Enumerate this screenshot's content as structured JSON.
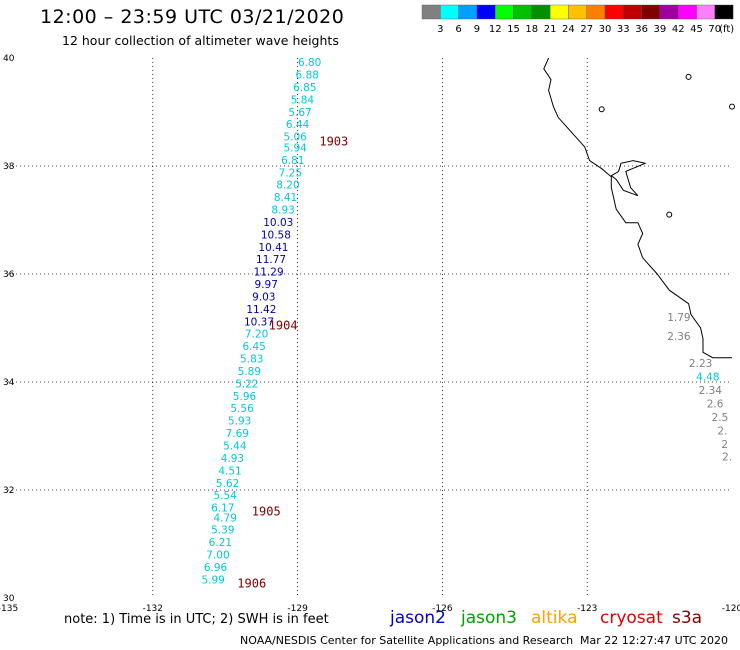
{
  "title": "12:00 – 23:59 UTC 03/21/2020",
  "subtitle": "12 hour collection of altimeter wave heights",
  "legend": {
    "unit": "(ft)",
    "bins": [
      {
        "label": "3",
        "color": "#808080"
      },
      {
        "label": "6",
        "color": "#00ffff"
      },
      {
        "label": "9",
        "color": "#00a0ff"
      },
      {
        "label": "12",
        "color": "#0000ff"
      },
      {
        "label": "15",
        "color": "#00ff00"
      },
      {
        "label": "18",
        "color": "#00c000"
      },
      {
        "label": "21",
        "color": "#009000"
      },
      {
        "label": "24",
        "color": "#ffff00"
      },
      {
        "label": "27",
        "color": "#ffc000"
      },
      {
        "label": "30",
        "color": "#ff8000"
      },
      {
        "label": "33",
        "color": "#ff0000"
      },
      {
        "label": "36",
        "color": "#c00000"
      },
      {
        "label": "39",
        "color": "#800000"
      },
      {
        "label": "42",
        "color": "#a000a0"
      },
      {
        "label": "45",
        "color": "#ff00ff"
      },
      {
        "label": "70",
        "color": "#ff80ff"
      },
      {
        "label": "",
        "color": "#000000"
      }
    ]
  },
  "map": {
    "lon_range": [
      -135,
      -120
    ],
    "lat_range": [
      30,
      40
    ],
    "lon_ticks": [
      "-135",
      "-132",
      "-129",
      "-126",
      "-123",
      "-120"
    ],
    "lat_ticks": [
      "30",
      "32",
      "34",
      "36",
      "38",
      "40"
    ]
  },
  "track_points": [
    {
      "lat": 39.85,
      "lon": -128.75,
      "v": "6.80",
      "c": "cyan"
    },
    {
      "lat": 39.62,
      "lon": -128.8,
      "v": "6.88",
      "c": "cyan"
    },
    {
      "lat": 39.39,
      "lon": -128.85,
      "v": "6.85",
      "c": "cyan"
    },
    {
      "lat": 39.16,
      "lon": -128.9,
      "v": "5.84",
      "c": "cyan"
    },
    {
      "lat": 38.93,
      "lon": -128.95,
      "v": "5.67",
      "c": "cyan"
    },
    {
      "lat": 38.7,
      "lon": -129.0,
      "v": "6.44",
      "c": "cyan"
    },
    {
      "lat": 38.47,
      "lon": -129.05,
      "v": "5.06",
      "c": "cyan"
    },
    {
      "lat": 38.27,
      "lon": -129.05,
      "v": "5.94",
      "c": "cyan"
    },
    {
      "lat": 38.04,
      "lon": -129.1,
      "v": "6.81",
      "c": "cyan"
    },
    {
      "lat": 37.81,
      "lon": -129.15,
      "v": "7.25",
      "c": "cyan"
    },
    {
      "lat": 37.58,
      "lon": -129.2,
      "v": "8.20",
      "c": "cyan"
    },
    {
      "lat": 37.35,
      "lon": -129.25,
      "v": "8.41",
      "c": "cyan"
    },
    {
      "lat": 37.12,
      "lon": -129.3,
      "v": "8.93",
      "c": "cyan"
    },
    {
      "lat": 36.89,
      "lon": -129.4,
      "v": "10.03",
      "c": "blue"
    },
    {
      "lat": 36.66,
      "lon": -129.45,
      "v": "10.58",
      "c": "blue"
    },
    {
      "lat": 36.43,
      "lon": -129.5,
      "v": "10.41",
      "c": "blue"
    },
    {
      "lat": 36.2,
      "lon": -129.55,
      "v": "11.77",
      "c": "blue"
    },
    {
      "lat": 35.97,
      "lon": -129.6,
      "v": "11.29",
      "c": "blue"
    },
    {
      "lat": 35.74,
      "lon": -129.65,
      "v": "9.97",
      "c": "blue"
    },
    {
      "lat": 35.51,
      "lon": -129.7,
      "v": "9.03",
      "c": "blue"
    },
    {
      "lat": 35.28,
      "lon": -129.75,
      "v": "11.42",
      "c": "blue"
    },
    {
      "lat": 35.05,
      "lon": -129.8,
      "v": "10.37",
      "c": "blue"
    },
    {
      "lat": 34.82,
      "lon": -129.85,
      "v": "7.20",
      "c": "cyan"
    },
    {
      "lat": 34.59,
      "lon": -129.9,
      "v": "6.45",
      "c": "cyan"
    },
    {
      "lat": 34.36,
      "lon": -129.95,
      "v": "5.83",
      "c": "cyan"
    },
    {
      "lat": 34.13,
      "lon": -130.0,
      "v": "5.89",
      "c": "cyan"
    },
    {
      "lat": 33.9,
      "lon": -130.05,
      "v": "5.22",
      "c": "cyan"
    },
    {
      "lat": 33.67,
      "lon": -130.1,
      "v": "5.96",
      "c": "cyan"
    },
    {
      "lat": 33.44,
      "lon": -130.15,
      "v": "5.56",
      "c": "cyan"
    },
    {
      "lat": 33.21,
      "lon": -130.2,
      "v": "5.93",
      "c": "cyan"
    },
    {
      "lat": 32.98,
      "lon": -130.25,
      "v": "7.69",
      "c": "cyan"
    },
    {
      "lat": 32.75,
      "lon": -130.3,
      "v": "5.44",
      "c": "cyan"
    },
    {
      "lat": 32.52,
      "lon": -130.35,
      "v": "4.93",
      "c": "cyan"
    },
    {
      "lat": 32.29,
      "lon": -130.4,
      "v": "4.51",
      "c": "cyan"
    },
    {
      "lat": 32.06,
      "lon": -130.45,
      "v": "5.62",
      "c": "cyan"
    },
    {
      "lat": 31.83,
      "lon": -130.5,
      "v": "5.54",
      "c": "cyan"
    },
    {
      "lat": 31.6,
      "lon": -130.55,
      "v": "6.17",
      "c": "cyan"
    },
    {
      "lat": 31.42,
      "lon": -130.5,
      "v": "4.79",
      "c": "cyan"
    },
    {
      "lat": 31.19,
      "lon": -130.55,
      "v": "5.39",
      "c": "cyan"
    },
    {
      "lat": 30.96,
      "lon": -130.6,
      "v": "6.21",
      "c": "cyan"
    },
    {
      "lat": 30.73,
      "lon": -130.65,
      "v": "7.00",
      "c": "cyan"
    },
    {
      "lat": 30.5,
      "lon": -130.7,
      "v": "6.96",
      "c": "cyan"
    },
    {
      "lat": 30.27,
      "lon": -130.75,
      "v": "5.99",
      "c": "cyan"
    }
  ],
  "time_labels": [
    {
      "lat": 38.45,
      "lon": -128.25,
      "v": "1903"
    },
    {
      "lat": 35.05,
      "lon": -129.3,
      "v": "1904"
    },
    {
      "lat": 31.6,
      "lon": -129.65,
      "v": "1905"
    },
    {
      "lat": 30.27,
      "lon": -129.95,
      "v": "1906"
    }
  ],
  "coastal_points": [
    {
      "lat": 35.2,
      "lon": -121.1,
      "v": "1.79",
      "c": "gray"
    },
    {
      "lat": 34.85,
      "lon": -121.1,
      "v": "2.36",
      "c": "gray"
    },
    {
      "lat": 34.35,
      "lon": -120.65,
      "v": "2.23",
      "c": "gray"
    },
    {
      "lat": 34.1,
      "lon": -120.5,
      "v": "4.48",
      "c": "cyan"
    },
    {
      "lat": 33.85,
      "lon": -120.45,
      "v": "2.34",
      "c": "gray"
    },
    {
      "lat": 33.6,
      "lon": -120.35,
      "v": "2.6",
      "c": "gray"
    },
    {
      "lat": 33.35,
      "lon": -120.25,
      "v": "2.5",
      "c": "gray"
    },
    {
      "lat": 33.1,
      "lon": -120.2,
      "v": "2.",
      "c": "gray"
    },
    {
      "lat": 32.85,
      "lon": -120.15,
      "v": "2",
      "c": "gray"
    },
    {
      "lat": 32.62,
      "lon": -120.1,
      "v": "2.",
      "c": "gray"
    }
  ],
  "notes": {
    "note": "note:  1) Time is in UTC;  2) SWH is in feet",
    "credit": "NOAA/NESDIS Center for Satellite Applications and Research",
    "timestamp": "Mar 22 12:27:47 UTC 2020"
  },
  "satellites": [
    {
      "name": "jason2",
      "color": "#0000c8"
    },
    {
      "name": "jason3",
      "color": "#00a000"
    },
    {
      "name": "altika",
      "color": "#ffa000"
    },
    {
      "name": "cryosat",
      "color": "#e00000"
    },
    {
      "name": "s3a",
      "color": "#800000"
    }
  ]
}
